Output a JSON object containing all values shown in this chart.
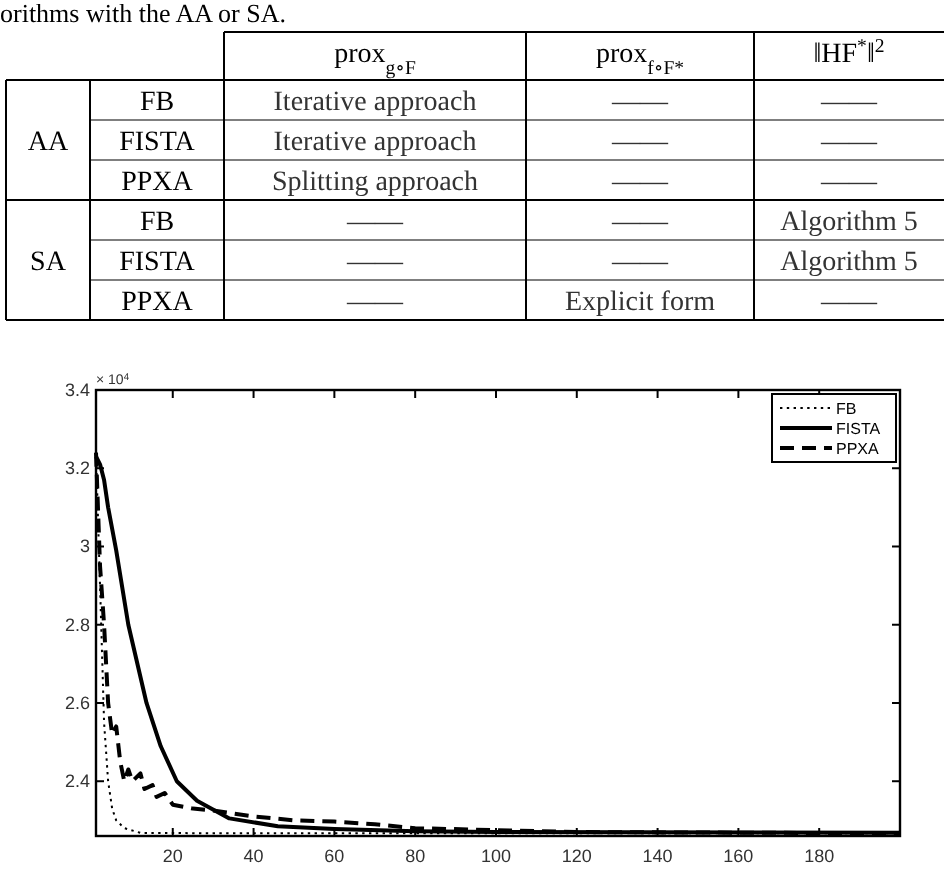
{
  "chart_data": [
    {
      "type": "other",
      "annotations": [
        "orithms with the AA or SA."
      ],
      "categories": [
        "prox$_{g∘F}$",
        "prox$_{f∘F*}$",
        "‖HF$^{*}$‖$^{2}$"
      ],
      "y_categories": [
        "FB",
        "FISTA",
        "PPXA",
        "FB",
        "FISTA",
        "PPXA"
      ],
      "y2_categories": [
        "AA",
        null,
        null,
        "SA",
        null,
        null
      ],
      "cell_labels": [
        [
          "Iterative approach",
          "——",
          "——"
        ],
        [
          "Iterative approach",
          "——",
          "——"
        ],
        [
          "Splitting approach",
          "——",
          "——"
        ],
        [
          "——",
          "——",
          "Algorithm 5"
        ],
        [
          "——",
          "——",
          "Algorithm 5"
        ],
        [
          "——",
          "Explicit form",
          "——"
        ]
      ]
    },
    {
      "type": "line",
      "annotations": [
        "× 10$^{4}$"
      ],
      "xlim": [
        1,
        200
      ],
      "xticks": [
        20,
        40,
        60,
        80,
        100,
        120,
        140,
        160,
        180
      ],
      "ylim": [
        2.26,
        3.4
      ],
      "yticks": [
        2.4,
        2.6,
        2.8,
        3,
        3.2,
        3.4
      ],
      "legend": "top right",
      "grid": false,
      "series": [
        {
          "name": "FB",
          "color": "#000000",
          "line_style": "dotted",
          "x": [
            1,
            2,
            3,
            4,
            5,
            6,
            8,
            12,
            30,
            200
          ],
          "values": [
            3.24,
            2.9,
            2.55,
            2.4,
            2.33,
            2.3,
            2.28,
            2.268,
            2.267,
            2.267
          ]
        },
        {
          "name": "FISTA",
          "color": "#000000",
          "line_style": "solid",
          "x": [
            1,
            2,
            3,
            4,
            6,
            9,
            13.5,
            17,
            21,
            26,
            34,
            46,
            60,
            80,
            100,
            200
          ],
          "values": [
            3.23,
            3.21,
            3.17,
            3.1,
            2.99,
            2.8,
            2.6,
            2.49,
            2.4,
            2.35,
            2.305,
            2.285,
            2.278,
            2.272,
            2.27,
            2.268
          ]
        },
        {
          "name": "PPXA",
          "color": "#000000",
          "line_style": "dashed",
          "x": [
            1,
            2,
            3,
            4,
            5,
            6,
            7,
            8,
            9,
            10,
            12,
            13,
            15,
            16,
            18,
            20,
            25,
            30,
            40,
            50,
            60,
            70,
            80,
            100,
            120,
            200
          ],
          "values": [
            3.24,
            2.95,
            2.8,
            2.6,
            2.52,
            2.54,
            2.45,
            2.4,
            2.43,
            2.4,
            2.42,
            2.38,
            2.39,
            2.36,
            2.37,
            2.34,
            2.33,
            2.325,
            2.31,
            2.3,
            2.297,
            2.29,
            2.28,
            2.275,
            2.27,
            2.267
          ]
        }
      ]
    }
  ]
}
